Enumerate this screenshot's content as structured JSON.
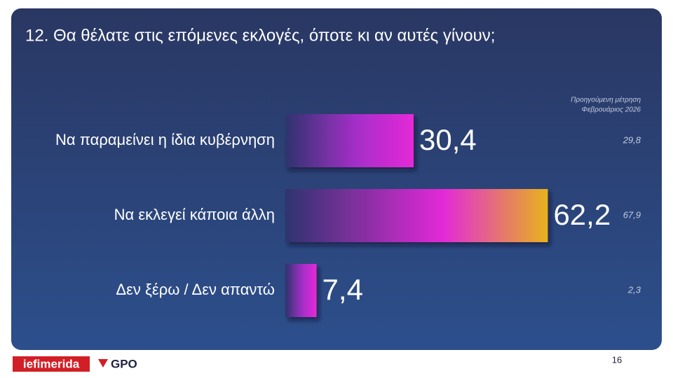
{
  "chart_data": {
    "type": "hbar",
    "title": "12. Θα θέλατε στις επόμενες εκλογές, όποτε κι αν αυτές γίνουν;",
    "categories": [
      "Να παραμείνει η ίδια κυβέρνηση",
      "Να εκλεγεί κάποια άλλη",
      "Δεν ξέρω / Δεν απαντώ"
    ],
    "values": [
      30.4,
      62.2,
      7.4
    ],
    "value_labels": [
      "30,4",
      "62,2",
      "7,4"
    ],
    "previous_title": [
      "Προηγούμενη μέτρηση",
      "Φεβρουάριος 2026"
    ],
    "previous_values": [
      29.8,
      67.9,
      2.3
    ],
    "previous_value_labels": [
      "29,8",
      "67,9",
      "2,3"
    ]
  },
  "footer": {
    "logos": [
      "iefimerida",
      "GPO"
    ],
    "page_number": "16"
  }
}
